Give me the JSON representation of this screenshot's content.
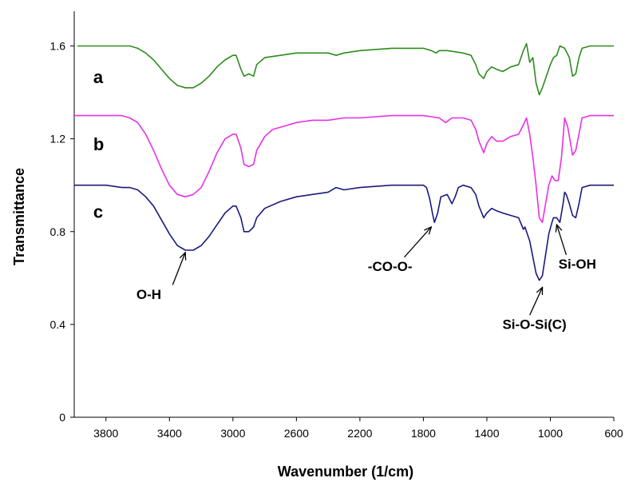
{
  "chart_data": {
    "type": "line",
    "xlabel": "Wavenumber (1/cm)",
    "ylabel": "Transmittance",
    "xlim": [
      4000,
      600
    ],
    "ylim": [
      0,
      1.6
    ],
    "x_reversed": true,
    "y_range_max": 1.75,
    "xticks": [
      3800,
      3400,
      3000,
      2600,
      2200,
      1800,
      1400,
      1000,
      600
    ],
    "yticks": [
      0,
      0.4,
      0.8,
      1.2,
      1.6
    ],
    "ytick_labels": [
      "0",
      "0.4",
      "0.8",
      "1.2",
      "1.6"
    ],
    "grid": false,
    "series": [
      {
        "name": "a",
        "color": "#2e8b1e",
        "points": [
          [
            3980,
            1.6
          ],
          [
            3800,
            1.6
          ],
          [
            3700,
            1.6
          ],
          [
            3650,
            1.6
          ],
          [
            3600,
            1.59
          ],
          [
            3550,
            1.57
          ],
          [
            3500,
            1.54
          ],
          [
            3450,
            1.5
          ],
          [
            3400,
            1.46
          ],
          [
            3350,
            1.43
          ],
          [
            3300,
            1.42
          ],
          [
            3250,
            1.42
          ],
          [
            3200,
            1.44
          ],
          [
            3150,
            1.47
          ],
          [
            3100,
            1.51
          ],
          [
            3050,
            1.54
          ],
          [
            3000,
            1.56
          ],
          [
            2980,
            1.56
          ],
          [
            2950,
            1.5
          ],
          [
            2930,
            1.47
          ],
          [
            2900,
            1.48
          ],
          [
            2870,
            1.47
          ],
          [
            2850,
            1.52
          ],
          [
            2800,
            1.55
          ],
          [
            2700,
            1.56
          ],
          [
            2600,
            1.57
          ],
          [
            2500,
            1.57
          ],
          [
            2400,
            1.57
          ],
          [
            2350,
            1.56
          ],
          [
            2300,
            1.57
          ],
          [
            2200,
            1.58
          ],
          [
            2000,
            1.59
          ],
          [
            1800,
            1.59
          ],
          [
            1750,
            1.58
          ],
          [
            1720,
            1.57
          ],
          [
            1700,
            1.58
          ],
          [
            1650,
            1.58
          ],
          [
            1550,
            1.57
          ],
          [
            1500,
            1.56
          ],
          [
            1470,
            1.52
          ],
          [
            1450,
            1.48
          ],
          [
            1420,
            1.46
          ],
          [
            1400,
            1.49
          ],
          [
            1370,
            1.51
          ],
          [
            1340,
            1.5
          ],
          [
            1300,
            1.49
          ],
          [
            1250,
            1.51
          ],
          [
            1200,
            1.52
          ],
          [
            1170,
            1.58
          ],
          [
            1150,
            1.61
          ],
          [
            1130,
            1.53
          ],
          [
            1110,
            1.55
          ],
          [
            1090,
            1.44
          ],
          [
            1070,
            1.39
          ],
          [
            1050,
            1.42
          ],
          [
            1030,
            1.46
          ],
          [
            1000,
            1.52
          ],
          [
            980,
            1.55
          ],
          [
            960,
            1.56
          ],
          [
            940,
            1.6
          ],
          [
            910,
            1.59
          ],
          [
            880,
            1.55
          ],
          [
            860,
            1.47
          ],
          [
            840,
            1.48
          ],
          [
            820,
            1.55
          ],
          [
            800,
            1.59
          ],
          [
            750,
            1.6
          ],
          [
            700,
            1.6
          ],
          [
            600,
            1.6
          ]
        ]
      },
      {
        "name": "b",
        "color": "#e830e8",
        "points": [
          [
            4000,
            1.3
          ],
          [
            3800,
            1.3
          ],
          [
            3700,
            1.3
          ],
          [
            3650,
            1.29
          ],
          [
            3600,
            1.27
          ],
          [
            3550,
            1.22
          ],
          [
            3500,
            1.15
          ],
          [
            3450,
            1.07
          ],
          [
            3400,
            1.0
          ],
          [
            3350,
            0.96
          ],
          [
            3300,
            0.95
          ],
          [
            3250,
            0.96
          ],
          [
            3200,
            0.99
          ],
          [
            3150,
            1.06
          ],
          [
            3100,
            1.14
          ],
          [
            3050,
            1.2
          ],
          [
            3000,
            1.22
          ],
          [
            2980,
            1.22
          ],
          [
            2950,
            1.16
          ],
          [
            2930,
            1.09
          ],
          [
            2900,
            1.08
          ],
          [
            2870,
            1.09
          ],
          [
            2850,
            1.15
          ],
          [
            2800,
            1.21
          ],
          [
            2750,
            1.24
          ],
          [
            2700,
            1.25
          ],
          [
            2600,
            1.27
          ],
          [
            2500,
            1.28
          ],
          [
            2400,
            1.28
          ],
          [
            2300,
            1.29
          ],
          [
            2200,
            1.29
          ],
          [
            2000,
            1.3
          ],
          [
            1800,
            1.3
          ],
          [
            1700,
            1.29
          ],
          [
            1660,
            1.27
          ],
          [
            1620,
            1.29
          ],
          [
            1550,
            1.29
          ],
          [
            1500,
            1.28
          ],
          [
            1470,
            1.24
          ],
          [
            1450,
            1.19
          ],
          [
            1420,
            1.14
          ],
          [
            1400,
            1.18
          ],
          [
            1370,
            1.21
          ],
          [
            1340,
            1.19
          ],
          [
            1300,
            1.19
          ],
          [
            1250,
            1.21
          ],
          [
            1200,
            1.22
          ],
          [
            1170,
            1.26
          ],
          [
            1150,
            1.29
          ],
          [
            1130,
            1.22
          ],
          [
            1110,
            1.12
          ],
          [
            1090,
            1.0
          ],
          [
            1070,
            0.86
          ],
          [
            1050,
            0.84
          ],
          [
            1030,
            0.92
          ],
          [
            1010,
            1.0
          ],
          [
            990,
            1.04
          ],
          [
            970,
            1.02
          ],
          [
            950,
            1.02
          ],
          [
            930,
            1.12
          ],
          [
            910,
            1.29
          ],
          [
            890,
            1.25
          ],
          [
            860,
            1.13
          ],
          [
            840,
            1.15
          ],
          [
            820,
            1.22
          ],
          [
            800,
            1.29
          ],
          [
            750,
            1.3
          ],
          [
            700,
            1.3
          ],
          [
            600,
            1.3
          ]
        ]
      },
      {
        "name": "c",
        "color": "#1a1a7e",
        "points": [
          [
            4000,
            1.0
          ],
          [
            3800,
            1.0
          ],
          [
            3700,
            0.99
          ],
          [
            3650,
            0.99
          ],
          [
            3600,
            0.98
          ],
          [
            3550,
            0.95
          ],
          [
            3500,
            0.91
          ],
          [
            3450,
            0.85
          ],
          [
            3400,
            0.79
          ],
          [
            3350,
            0.74
          ],
          [
            3300,
            0.72
          ],
          [
            3250,
            0.72
          ],
          [
            3200,
            0.74
          ],
          [
            3150,
            0.78
          ],
          [
            3100,
            0.83
          ],
          [
            3050,
            0.88
          ],
          [
            3000,
            0.91
          ],
          [
            2980,
            0.91
          ],
          [
            2950,
            0.86
          ],
          [
            2930,
            0.8
          ],
          [
            2900,
            0.8
          ],
          [
            2870,
            0.82
          ],
          [
            2850,
            0.86
          ],
          [
            2800,
            0.9
          ],
          [
            2700,
            0.93
          ],
          [
            2600,
            0.95
          ],
          [
            2500,
            0.96
          ],
          [
            2400,
            0.97
          ],
          [
            2350,
            0.99
          ],
          [
            2300,
            0.98
          ],
          [
            2200,
            0.99
          ],
          [
            2000,
            1.0
          ],
          [
            1800,
            1.0
          ],
          [
            1780,
            0.99
          ],
          [
            1760,
            0.94
          ],
          [
            1740,
            0.87
          ],
          [
            1730,
            0.84
          ],
          [
            1710,
            0.88
          ],
          [
            1690,
            0.95
          ],
          [
            1650,
            0.96
          ],
          [
            1620,
            0.92
          ],
          [
            1600,
            0.95
          ],
          [
            1580,
            0.99
          ],
          [
            1550,
            1.0
          ],
          [
            1500,
            0.99
          ],
          [
            1470,
            0.96
          ],
          [
            1450,
            0.91
          ],
          [
            1420,
            0.86
          ],
          [
            1400,
            0.88
          ],
          [
            1370,
            0.9
          ],
          [
            1340,
            0.89
          ],
          [
            1300,
            0.88
          ],
          [
            1250,
            0.87
          ],
          [
            1200,
            0.86
          ],
          [
            1170,
            0.81
          ],
          [
            1160,
            0.82
          ],
          [
            1150,
            0.8
          ],
          [
            1130,
            0.76
          ],
          [
            1110,
            0.69
          ],
          [
            1090,
            0.62
          ],
          [
            1070,
            0.59
          ],
          [
            1050,
            0.61
          ],
          [
            1030,
            0.7
          ],
          [
            1010,
            0.79
          ],
          [
            990,
            0.84
          ],
          [
            980,
            0.86
          ],
          [
            960,
            0.86
          ],
          [
            940,
            0.84
          ],
          [
            920,
            0.92
          ],
          [
            910,
            0.97
          ],
          [
            900,
            0.96
          ],
          [
            880,
            0.92
          ],
          [
            860,
            0.87
          ],
          [
            840,
            0.86
          ],
          [
            820,
            0.92
          ],
          [
            800,
            0.99
          ],
          [
            750,
            1.0
          ],
          [
            700,
            1.0
          ],
          [
            600,
            1.0
          ]
        ]
      }
    ],
    "series_labels": [
      {
        "text": "a",
        "x": 3880,
        "y": 1.44
      },
      {
        "text": "b",
        "x": 3880,
        "y": 1.15
      },
      {
        "text": "c",
        "x": 3880,
        "y": 0.86
      }
    ],
    "annotations": [
      {
        "text": "O-H",
        "text_x": 3530,
        "text_y": 0.51,
        "arrow_from": [
          3380,
          0.57
        ],
        "arrow_to": [
          3300,
          0.71
        ]
      },
      {
        "text": "-CO-O-",
        "text_x": 2010,
        "text_y": 0.63,
        "arrow_from": [
          1920,
          0.69
        ],
        "arrow_to": [
          1750,
          0.82
        ]
      },
      {
        "text": "Si-O-Si(C)",
        "text_x": 1100,
        "text_y": 0.38,
        "arrow_from": [
          1130,
          0.44
        ],
        "arrow_to": [
          1050,
          0.56
        ]
      },
      {
        "text": "Si-OH",
        "text_x": 830,
        "text_y": 0.64,
        "arrow_from": [
          900,
          0.7
        ],
        "arrow_to": [
          960,
          0.83
        ]
      }
    ]
  }
}
